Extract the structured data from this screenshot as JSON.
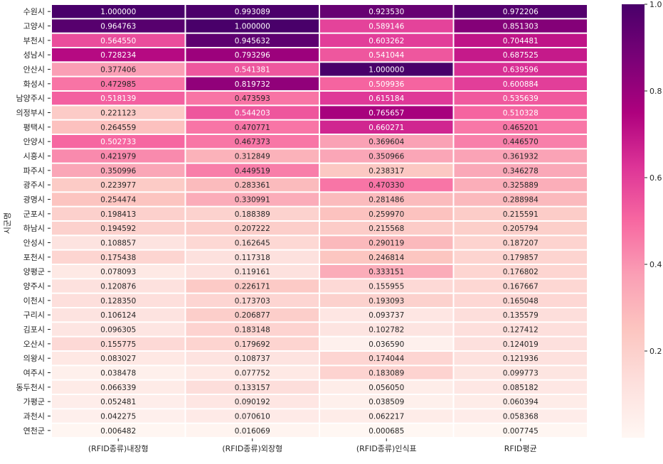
{
  "chart_data": {
    "type": "heatmap",
    "title": "",
    "xlabel": "",
    "ylabel": "시군명",
    "columns": [
      "(RFID종류)내장형",
      "(RFID종류)외장형",
      "(RFID종류)인식표",
      "RFID평균"
    ],
    "rows": [
      "수원시",
      "고양시",
      "부천시",
      "성남시",
      "안산시",
      "화성시",
      "남양주시",
      "의정부시",
      "평택시",
      "안양시",
      "시흥시",
      "파주시",
      "광주시",
      "광명시",
      "군포시",
      "하남시",
      "안성시",
      "포천시",
      "양평군",
      "양주시",
      "이천시",
      "구리시",
      "김포시",
      "오산시",
      "의왕시",
      "여주시",
      "동두천시",
      "가평군",
      "과천시",
      "연천군"
    ],
    "values": [
      [
        "1.000000",
        "0.993089",
        "0.923530",
        "0.972206"
      ],
      [
        "0.964763",
        "1.000000",
        "0.589146",
        "0.851303"
      ],
      [
        "0.564550",
        "0.945632",
        "0.603262",
        "0.704481"
      ],
      [
        "0.728234",
        "0.793296",
        "0.541044",
        "0.687525"
      ],
      [
        "0.377406",
        "0.541381",
        "1.000000",
        "0.639596"
      ],
      [
        "0.472985",
        "0.819732",
        "0.509936",
        "0.600884"
      ],
      [
        "0.518139",
        "0.473593",
        "0.615184",
        "0.535639"
      ],
      [
        "0.221123",
        "0.544203",
        "0.765657",
        "0.510328"
      ],
      [
        "0.264559",
        "0.470771",
        "0.660271",
        "0.465201"
      ],
      [
        "0.502733",
        "0.467373",
        "0.369604",
        "0.446570"
      ],
      [
        "0.421979",
        "0.312849",
        "0.350966",
        "0.361932"
      ],
      [
        "0.350996",
        "0.449519",
        "0.238317",
        "0.346278"
      ],
      [
        "0.223977",
        "0.283361",
        "0.470330",
        "0.325889"
      ],
      [
        "0.254474",
        "0.330991",
        "0.281486",
        "0.288984"
      ],
      [
        "0.198413",
        "0.188389",
        "0.259970",
        "0.215591"
      ],
      [
        "0.194592",
        "0.207222",
        "0.215568",
        "0.205794"
      ],
      [
        "0.108857",
        "0.162645",
        "0.290119",
        "0.187207"
      ],
      [
        "0.175438",
        "0.117318",
        "0.246814",
        "0.179857"
      ],
      [
        "0.078093",
        "0.119161",
        "0.333151",
        "0.176802"
      ],
      [
        "0.120876",
        "0.226171",
        "0.155955",
        "0.167667"
      ],
      [
        "0.128350",
        "0.173703",
        "0.193093",
        "0.165048"
      ],
      [
        "0.106124",
        "0.206877",
        "0.093737",
        "0.135579"
      ],
      [
        "0.096305",
        "0.183148",
        "0.102782",
        "0.127412"
      ],
      [
        "0.155775",
        "0.179692",
        "0.036590",
        "0.124019"
      ],
      [
        "0.083027",
        "0.108737",
        "0.174044",
        "0.121936"
      ],
      [
        "0.038478",
        "0.077752",
        "0.183089",
        "0.099773"
      ],
      [
        "0.066339",
        "0.133157",
        "0.056050",
        "0.085182"
      ],
      [
        "0.052481",
        "0.090192",
        "0.038509",
        "0.060394"
      ],
      [
        "0.042275",
        "0.070610",
        "0.062217",
        "0.058368"
      ],
      [
        "0.006482",
        "0.016069",
        "0.000685",
        "0.007745"
      ]
    ],
    "colorbar": {
      "ticks": [
        "0.2",
        "0.4",
        "0.6",
        "0.8",
        "1.0"
      ],
      "vmin": 0.0,
      "vmax": 1.0
    },
    "colormap": "RdPu",
    "colormap_stops": [
      "#fff7f3",
      "#fde0dd",
      "#fcc5c0",
      "#fa9fb5",
      "#f768a1",
      "#dd3497",
      "#ae017e",
      "#7a0177",
      "#49006a"
    ],
    "grid_line_color": "#ffffff"
  }
}
